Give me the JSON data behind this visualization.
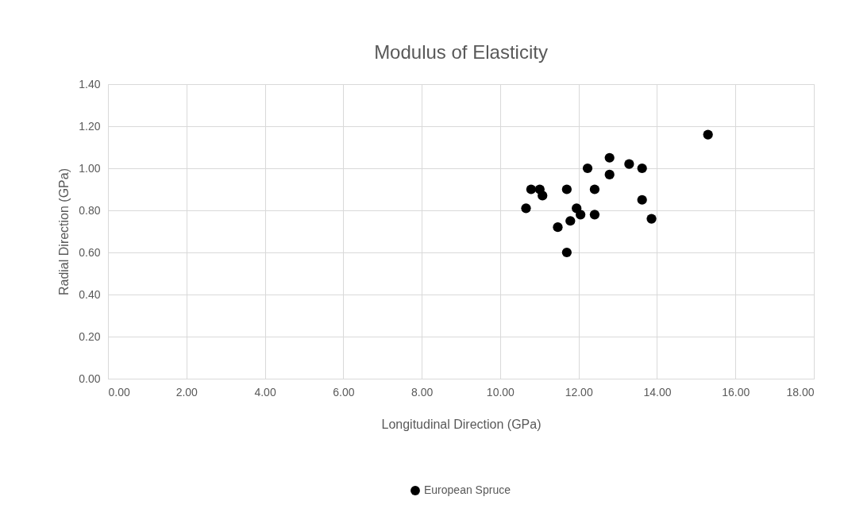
{
  "chart_data": {
    "type": "scatter",
    "title": "Modulus of Elasticity",
    "xlabel": "Longitudinal Direction (GPa)",
    "ylabel": "Radial Direction (GPa)",
    "xlim": [
      0,
      18
    ],
    "xticks": [
      {
        "value": 0,
        "label": "0.00"
      },
      {
        "value": 2,
        "label": "2.00"
      },
      {
        "value": 4,
        "label": "4.00"
      },
      {
        "value": 6,
        "label": "6.00"
      },
      {
        "value": 8,
        "label": "8.00"
      },
      {
        "value": 10,
        "label": "10.00"
      },
      {
        "value": 12,
        "label": "12.00"
      },
      {
        "value": 14,
        "label": "14.00"
      },
      {
        "value": 16,
        "label": "16.00"
      },
      {
        "value": 18,
        "label": "18.00"
      }
    ],
    "ylim": [
      0,
      1.4
    ],
    "yticks": [
      {
        "value": 0,
        "label": "0.00"
      },
      {
        "value": 0.2,
        "label": "0.20"
      },
      {
        "value": 0.4,
        "label": "0.40"
      },
      {
        "value": 0.6,
        "label": "0.60"
      },
      {
        "value": 0.8,
        "label": "0.80"
      },
      {
        "value": 1.0,
        "label": "1.00"
      },
      {
        "value": 1.2,
        "label": "1.20"
      },
      {
        "value": 1.4,
        "label": "1.40"
      }
    ],
    "grid": true,
    "legend": "bottom",
    "marker": "circle",
    "series": [
      {
        "name": "European Spruce",
        "color": "#000000",
        "x": [
          15.3,
          12.79,
          13.29,
          13.62,
          12.23,
          12.79,
          10.79,
          11.01,
          11.08,
          11.7,
          12.41,
          13.62,
          10.66,
          11.95,
          12.05,
          12.41,
          13.86,
          11.79,
          11.47,
          11.7
        ],
        "values": [
          1.16,
          1.05,
          1.02,
          1.0,
          1.0,
          0.97,
          0.9,
          0.9,
          0.87,
          0.9,
          0.9,
          0.85,
          0.81,
          0.81,
          0.78,
          0.78,
          0.76,
          0.75,
          0.72,
          0.6
        ]
      }
    ]
  }
}
